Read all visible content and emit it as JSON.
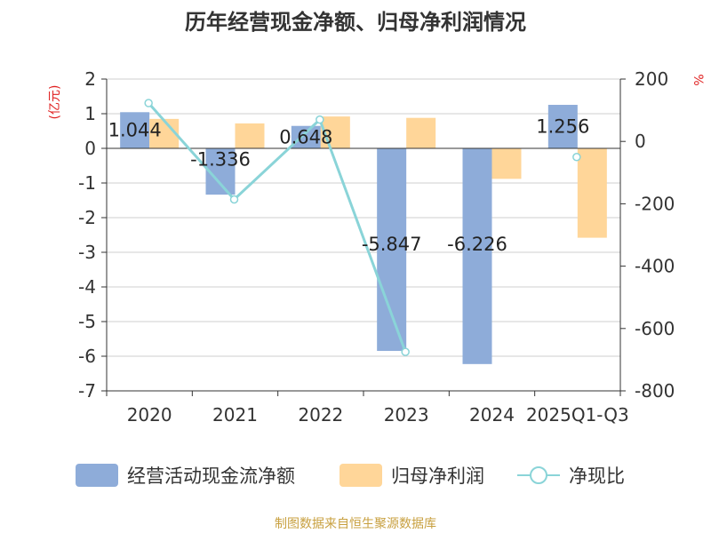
{
  "chart_data": {
    "type": "bar",
    "title": "历年经营现金净额、归母净利润情况",
    "categories": [
      "2020",
      "2021",
      "2022",
      "2023",
      "2024",
      "2025Q1-Q3"
    ],
    "ylabel_left": "(亿元)",
    "ylabel_right": "%",
    "ylim_left": [
      -7,
      2
    ],
    "ylim_right": [
      -800,
      200
    ],
    "yticks_left": [
      "2",
      "1",
      "0",
      "-1",
      "-2",
      "-3",
      "-4",
      "-5",
      "-6",
      "-7"
    ],
    "yticks_right": [
      "200",
      "0",
      "-200",
      "-400",
      "-600",
      "-800"
    ],
    "series": [
      {
        "name": "经营活动现金流净额",
        "type": "bar",
        "axis": "left",
        "color": "#8eacd9",
        "values": [
          1.044,
          -1.336,
          0.648,
          -5.847,
          -6.226,
          1.256
        ],
        "labels": [
          "1.044",
          "-1.336",
          "0.648",
          "-5.847",
          "-6.226",
          "1.256"
        ]
      },
      {
        "name": "归母净利润",
        "type": "bar",
        "axis": "left",
        "color": "#ffd699",
        "values": [
          0.85,
          0.72,
          0.92,
          0.88,
          -0.88,
          -2.58
        ]
      },
      {
        "name": "净现比",
        "type": "line",
        "axis": "right",
        "color": "#8ad4d8",
        "values": [
          123,
          -186,
          70,
          -675,
          null,
          -50
        ]
      }
    ],
    "legend_position": "bottom",
    "grid": true
  },
  "source": "制图数据来自恒生聚源数据库"
}
